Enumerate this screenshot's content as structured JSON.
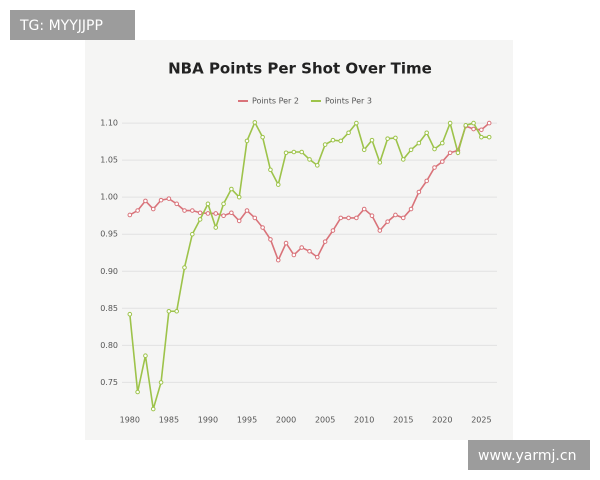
{
  "chart_data": {
    "type": "line",
    "title": "NBA Points Per Shot Over Time",
    "x": [
      1980,
      1981,
      1982,
      1983,
      1984,
      1985,
      1986,
      1987,
      1988,
      1989,
      1990,
      1991,
      1992,
      1993,
      1994,
      1995,
      1996,
      1997,
      1998,
      1999,
      2000,
      2001,
      2002,
      2003,
      2004,
      2005,
      2006,
      2007,
      2008,
      2009,
      2010,
      2011,
      2012,
      2013,
      2014,
      2015,
      2016,
      2017,
      2018,
      2019,
      2020,
      2021,
      2022,
      2023,
      2024,
      2025,
      2026
    ],
    "series": [
      {
        "name": "Points Per 2",
        "color": "#d9737a",
        "values": [
          0.976,
          0.982,
          0.995,
          0.984,
          0.996,
          0.998,
          0.991,
          0.982,
          0.982,
          0.979,
          0.978,
          0.978,
          0.975,
          0.979,
          0.968,
          0.982,
          0.972,
          0.959,
          0.943,
          0.915,
          0.938,
          0.922,
          0.932,
          0.927,
          0.919,
          0.94,
          0.955,
          0.972,
          0.972,
          0.972,
          0.984,
          0.975,
          0.955,
          0.967,
          0.976,
          0.972,
          0.984,
          1.007,
          1.022,
          1.04,
          1.048,
          1.06,
          1.063,
          1.096,
          1.092,
          1.091,
          1.1
        ]
      },
      {
        "name": "Points Per 3",
        "color": "#9dc34a",
        "values": [
          0.842,
          0.737,
          0.786,
          0.714,
          0.75,
          0.846,
          0.846,
          0.905,
          0.95,
          0.97,
          0.991,
          0.959,
          0.991,
          1.011,
          1.0,
          1.076,
          1.101,
          1.081,
          1.037,
          1.017,
          1.06,
          1.061,
          1.061,
          1.051,
          1.043,
          1.071,
          1.077,
          1.076,
          1.087,
          1.1,
          1.064,
          1.077,
          1.047,
          1.079,
          1.08,
          1.051,
          1.064,
          1.073,
          1.087,
          1.065,
          1.073,
          1.1,
          1.06,
          1.097,
          1.1,
          1.081,
          1.081
        ]
      }
    ],
    "xlim": [
      1979,
      2027
    ],
    "xticks": [
      1980,
      1985,
      1990,
      1995,
      2000,
      2005,
      2010,
      2015,
      2020,
      2025
    ],
    "ylim": [
      0.71,
      1.115
    ],
    "yticks": [
      {
        "value": 0.75,
        "label": "0.75"
      },
      {
        "value": 0.8,
        "label": "0.80"
      },
      {
        "value": 0.85,
        "label": "0.85"
      },
      {
        "value": 0.9,
        "label": "0.90"
      },
      {
        "value": 0.95,
        "label": "0.95"
      },
      {
        "value": 1.0,
        "label": "1.00"
      },
      {
        "value": 1.05,
        "label": "1.05"
      },
      {
        "value": 1.1,
        "label": "1.10"
      }
    ],
    "grid": true,
    "legend": "top"
  },
  "watermarks": [
    "TG: MYYJJPP",
    "www.yarmj.cn"
  ]
}
